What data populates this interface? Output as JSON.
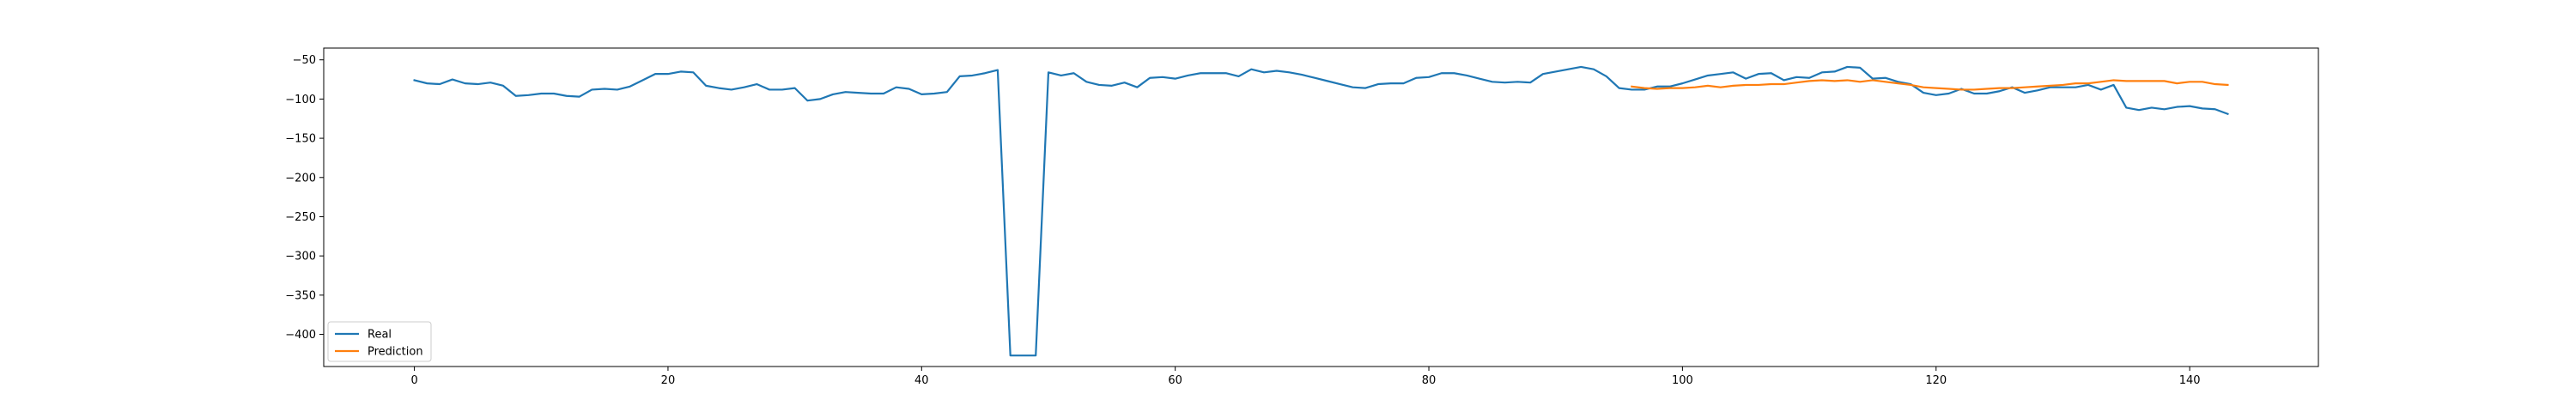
{
  "chart_data": {
    "type": "line",
    "title": "",
    "xlabel": "",
    "ylabel": "",
    "xlim": [
      -7.15,
      150.15
    ],
    "ylim": [
      -441,
      -35
    ],
    "xticks": [
      0,
      20,
      40,
      60,
      80,
      100,
      120,
      140
    ],
    "yticks": [
      -400,
      -350,
      -300,
      -250,
      -200,
      -150,
      -100,
      -50
    ],
    "grid": false,
    "legend_position": "lower-left",
    "series": [
      {
        "name": "Real",
        "color": "#1f77b4",
        "x": [
          0,
          1,
          2,
          3,
          4,
          5,
          6,
          7,
          8,
          9,
          10,
          11,
          12,
          13,
          14,
          15,
          16,
          17,
          18,
          19,
          20,
          21,
          22,
          23,
          24,
          25,
          26,
          27,
          28,
          29,
          30,
          31,
          32,
          33,
          34,
          35,
          36,
          37,
          38,
          39,
          40,
          41,
          42,
          43,
          44,
          45,
          46,
          47,
          48,
          49,
          50,
          51,
          52,
          53,
          54,
          55,
          56,
          57,
          58,
          59,
          60,
          61,
          62,
          63,
          64,
          65,
          66,
          67,
          68,
          69,
          70,
          71,
          72,
          73,
          74,
          75,
          76,
          77,
          78,
          79,
          80,
          81,
          82,
          83,
          84,
          85,
          86,
          87,
          88,
          89,
          90,
          91,
          92,
          93,
          94,
          95,
          96,
          97,
          98,
          99,
          100,
          101,
          102,
          103,
          104,
          105,
          106,
          107,
          108,
          109,
          110,
          111,
          112,
          113,
          114,
          115,
          116,
          117,
          118,
          119,
          120,
          121,
          122,
          123,
          124,
          125,
          126,
          127,
          128,
          129,
          130,
          131,
          132,
          133,
          134,
          135,
          136,
          137,
          138,
          139,
          140,
          141,
          142,
          143
        ],
        "values": [
          -76,
          -80,
          -81,
          -75,
          -80,
          -81,
          -79,
          -83,
          -96,
          -95,
          -93,
          -93,
          -96,
          -97,
          -88,
          -87,
          -88,
          -84,
          -76,
          -68,
          -68,
          -65,
          -66,
          -83,
          -86,
          -88,
          -85,
          -81,
          -88,
          -88,
          -86,
          -102,
          -100,
          -94,
          -91,
          -92,
          -93,
          -93,
          -85,
          -87,
          -94,
          -93,
          -91,
          -71,
          -70,
          -67,
          -63,
          -427,
          -427,
          -427,
          -66,
          -70,
          -67,
          -78,
          -82,
          -83,
          -79,
          -85,
          -73,
          -72,
          -74,
          -70,
          -67,
          -67,
          -67,
          -71,
          -62,
          -66,
          -64,
          -66,
          -69,
          -73,
          -77,
          -81,
          -85,
          -86,
          -81,
          -80,
          -80,
          -73,
          -72,
          -67,
          -67,
          -70,
          -74,
          -78,
          -79,
          -78,
          -79,
          -68,
          -65,
          -62,
          -59,
          -62,
          -71,
          -86,
          -88,
          -88,
          -84,
          -84,
          -80,
          -75,
          -70,
          -68,
          -66,
          -74,
          -68,
          -67,
          -76,
          -72,
          -73,
          -66,
          -65,
          -59,
          -60,
          -74,
          -73,
          -78,
          -81,
          -92,
          -95,
          -93,
          -87,
          -93,
          -93,
          -90,
          -85,
          -92,
          -89,
          -85,
          -85,
          -85,
          -82,
          -88,
          -82,
          -111,
          -114,
          -111,
          -113,
          -110,
          -109,
          -112,
          -113,
          -119
        ]
      },
      {
        "name": "Prediction",
        "color": "#ff7f0e",
        "x": [
          96,
          97,
          98,
          99,
          100,
          101,
          102,
          103,
          104,
          105,
          106,
          107,
          108,
          109,
          110,
          111,
          112,
          113,
          114,
          115,
          116,
          117,
          118,
          119,
          120,
          121,
          122,
          123,
          124,
          125,
          126,
          127,
          128,
          129,
          130,
          131,
          132,
          133,
          134,
          135,
          136,
          137,
          138,
          139,
          140,
          141,
          142,
          143
        ],
        "values": [
          -84,
          -86,
          -87,
          -86,
          -86,
          -85,
          -83,
          -85,
          -83,
          -82,
          -82,
          -81,
          -81,
          -79,
          -77,
          -76,
          -77,
          -76,
          -78,
          -76,
          -78,
          -80,
          -82,
          -85,
          -86,
          -87,
          -88,
          -88,
          -87,
          -86,
          -86,
          -85,
          -84,
          -83,
          -82,
          -80,
          -80,
          -78,
          -76,
          -77,
          -77,
          -77,
          -77,
          -80,
          -78,
          -78,
          -81,
          -82
        ]
      }
    ]
  }
}
